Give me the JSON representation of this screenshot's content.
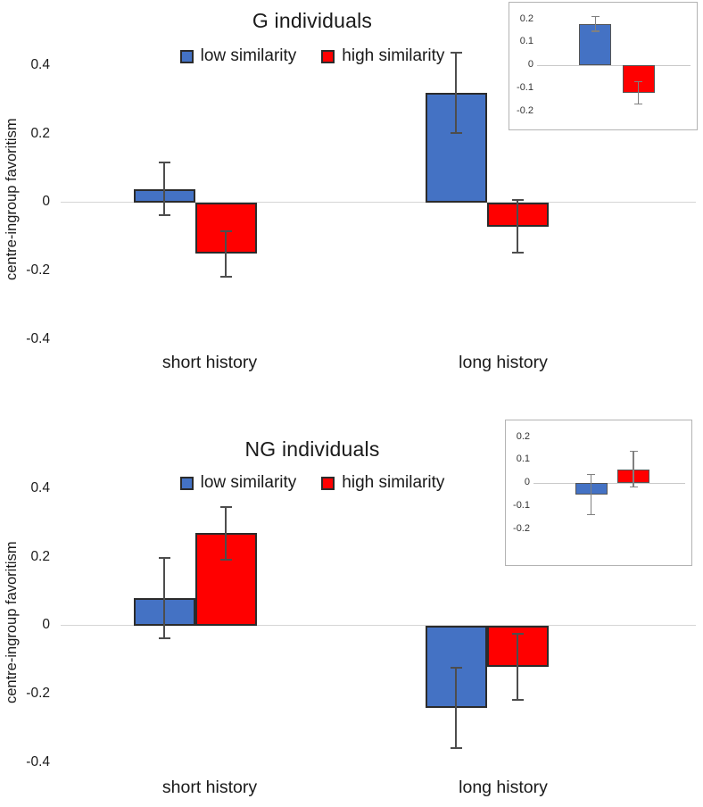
{
  "figure": {
    "background": "#ffffff",
    "panel_count": 2
  },
  "colors": {
    "low_similarity": "#4472C4",
    "high_similarity": "#FF0000",
    "bar_border": "#2b2b2b",
    "error_bar": "#4d4d4d",
    "zero_line": "#d6d6d6",
    "inset_border": "#b3b3b3",
    "text": "#1a1a1a"
  },
  "chart_data": [
    {
      "type": "bar",
      "title": "G individuals",
      "ylabel": "centre-ingroup favoritism",
      "xlabel": "",
      "categories": [
        "short history",
        "long history"
      ],
      "yticks": [
        0.4,
        0.2,
        0,
        -0.2,
        -0.4
      ],
      "ylim": [
        -0.42,
        0.44
      ],
      "grid": "zero-line-only",
      "legend_position": "top-center",
      "series": [
        {
          "name": "low similarity",
          "color": "#4472C4",
          "values": [
            0.04,
            0.32
          ],
          "errors": [
            0.08,
            0.12
          ]
        },
        {
          "name": "high similarity",
          "color": "#FF0000",
          "values": [
            -0.15,
            -0.07
          ],
          "errors": [
            0.07,
            0.08
          ]
        }
      ],
      "inset": {
        "type": "bar",
        "yticks": [
          0.2,
          0.1,
          0,
          -0.1,
          -0.2
        ],
        "ylim": [
          -0.24,
          0.24
        ],
        "bars": [
          {
            "series": "low similarity",
            "color": "#4472C4",
            "value": 0.18,
            "error": 0.035
          },
          {
            "series": "high similarity",
            "color": "#FF0000",
            "value": -0.12,
            "error": 0.05
          }
        ]
      }
    },
    {
      "type": "bar",
      "title": "NG individuals",
      "ylabel": "centre-ingroup favoritism",
      "xlabel": "",
      "categories": [
        "short history",
        "long history"
      ],
      "yticks": [
        0.4,
        0.2,
        0,
        -0.2,
        -0.4
      ],
      "ylim": [
        -0.42,
        0.44
      ],
      "grid": "zero-line-only",
      "legend_position": "top-center",
      "series": [
        {
          "name": "low similarity",
          "color": "#4472C4",
          "values": [
            0.08,
            -0.24
          ],
          "errors": [
            0.12,
            0.12
          ]
        },
        {
          "name": "high similarity",
          "color": "#FF0000",
          "values": [
            0.27,
            -0.12
          ],
          "errors": [
            0.08,
            0.1
          ]
        }
      ],
      "inset": {
        "type": "bar",
        "yticks": [
          0.2,
          0.1,
          0,
          -0.1,
          -0.2
        ],
        "ylim": [
          -0.24,
          0.24
        ],
        "bars": [
          {
            "series": "low similarity",
            "color": "#4472C4",
            "value": -0.05,
            "error": 0.09
          },
          {
            "series": "high similarity",
            "color": "#FF0000",
            "value": 0.06,
            "error": 0.08
          }
        ]
      }
    }
  ]
}
